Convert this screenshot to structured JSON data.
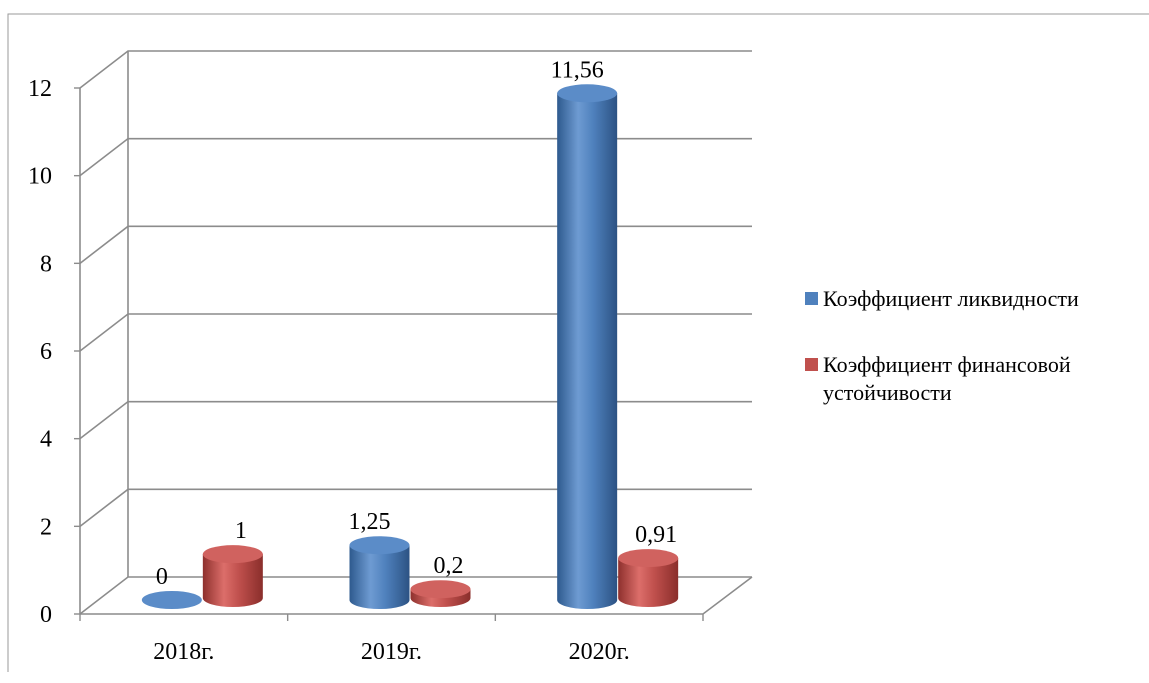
{
  "chart_data": {
    "type": "bar",
    "categories": [
      "2018г.",
      "2019г.",
      "2020г."
    ],
    "series": [
      {
        "name": "Коэффициент ликвидности",
        "values": [
          0,
          1.25,
          11.56
        ],
        "labels": [
          "0",
          "1,25",
          "11,56"
        ],
        "color": "#4F81BD"
      },
      {
        "name": "Коэффициент финансовой устойчивости",
        "values": [
          1,
          0.2,
          0.91
        ],
        "labels": [
          "1",
          "0,2",
          "0,91"
        ],
        "color": "#C0504D"
      }
    ],
    "y_ticks": [
      "0",
      "2",
      "4",
      "6",
      "8",
      "10",
      "12"
    ],
    "ylim": [
      0,
      12
    ],
    "grid": true,
    "legend_position": "right",
    "style": "3d-cylinder"
  }
}
